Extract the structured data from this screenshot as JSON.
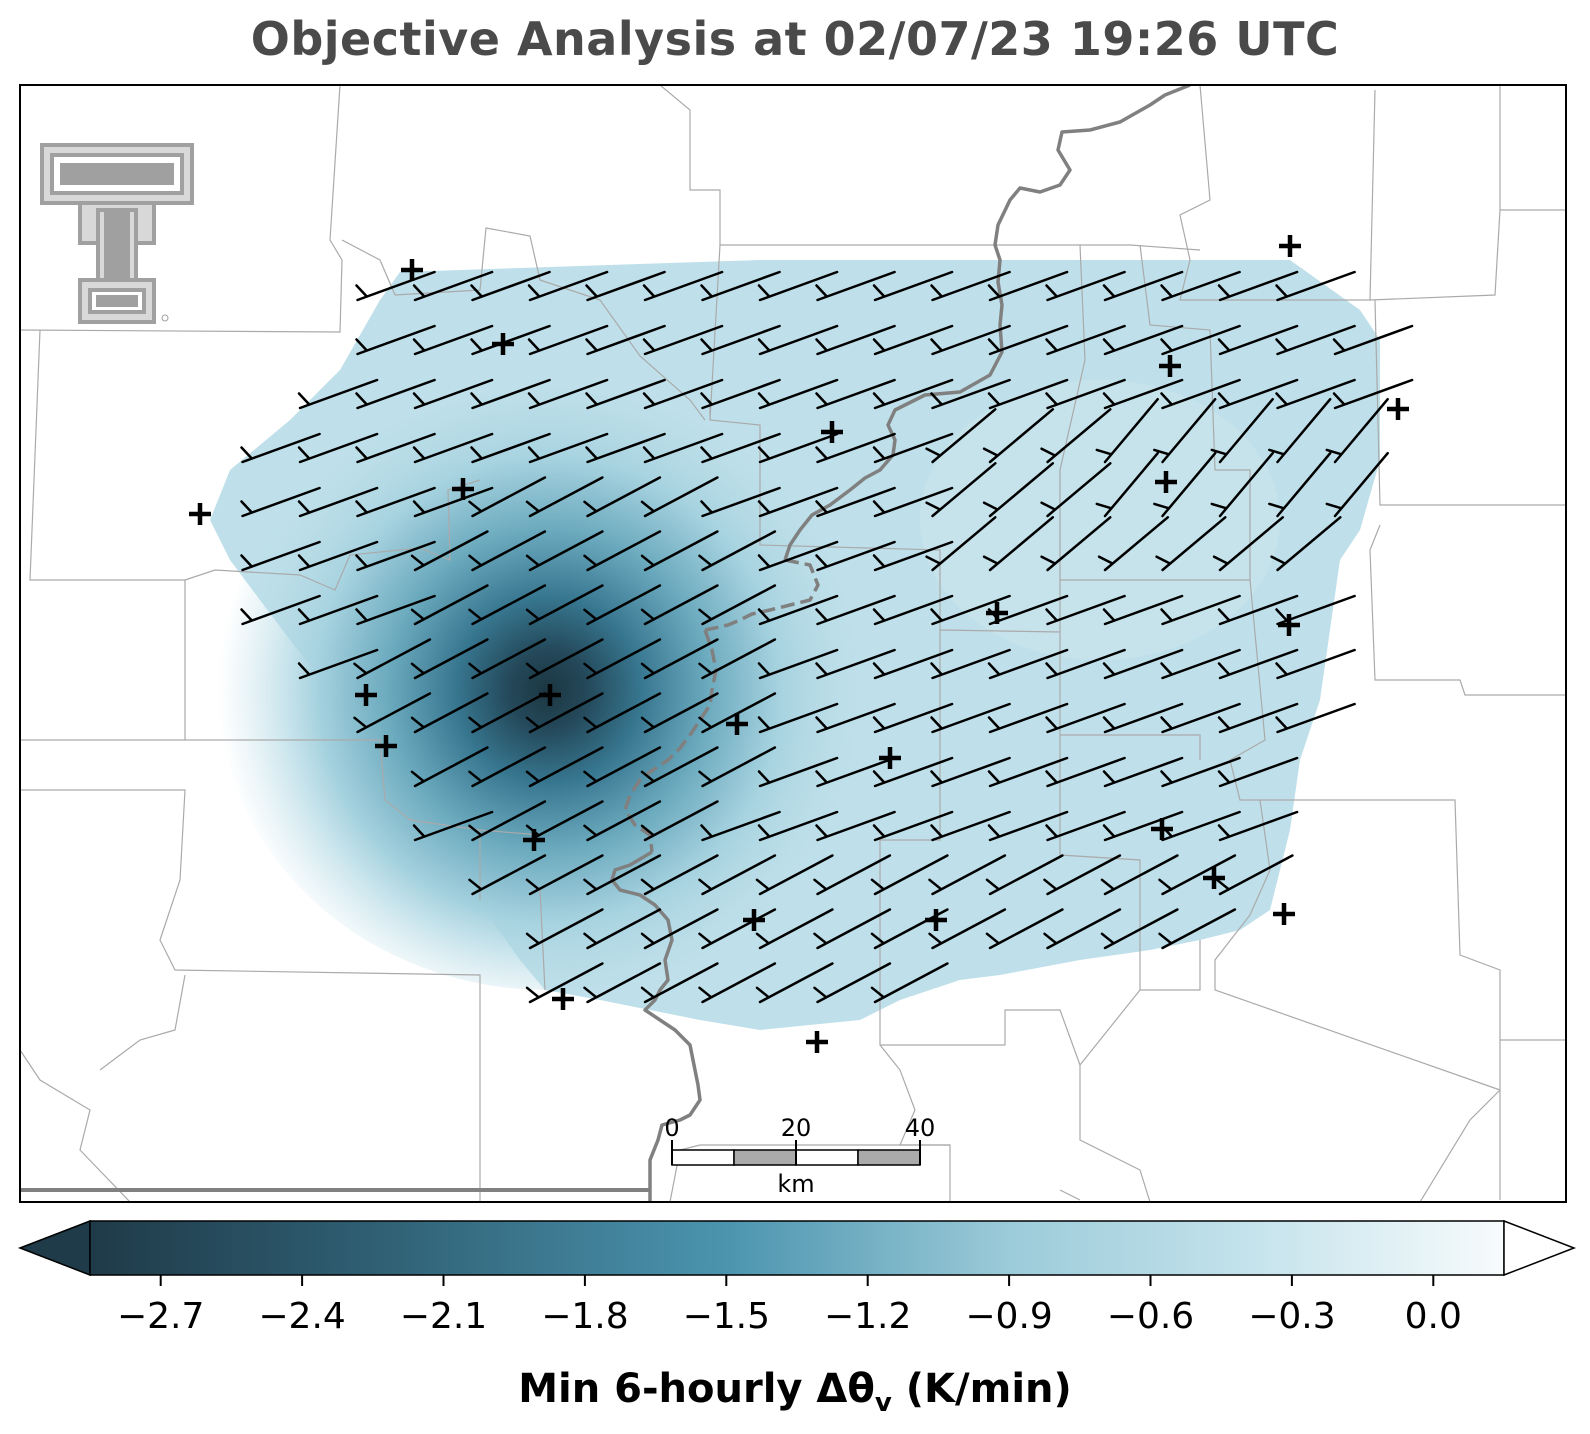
{
  "title": "Objective Analysis at 02/07/23 19:26 UTC",
  "colorbar": {
    "label_main": "Min 6-hourly Δθ",
    "label_sub": "v",
    "label_unit": " (K/min)",
    "ticks": [
      "−2.7",
      "−2.4",
      "−2.1",
      "−1.8",
      "−1.5",
      "−1.2",
      "−0.9",
      "−0.6",
      "−0.3",
      "0.0"
    ],
    "tick_values": [
      -2.7,
      -2.4,
      -2.1,
      -1.8,
      -1.5,
      -1.2,
      -0.9,
      -0.6,
      -0.3,
      0.0
    ],
    "range": [
      -2.85,
      0.15
    ],
    "extend": "both",
    "colors": {
      "dark": "#1f3a48",
      "mid": "#3b8aa5",
      "light": "#bfe0ea",
      "white": "#f9fcfd"
    }
  },
  "scalebar": {
    "labels": [
      "0",
      "20",
      "40"
    ],
    "unit": "km",
    "colors": [
      "#ffffff",
      "#aaaaaa"
    ]
  },
  "logo": {
    "name": "Texas Tech double-T logo",
    "color": "#a0a0a0"
  },
  "colors": {
    "field": "#bfe0ea",
    "field_dark": "#1c3642",
    "barb": "#000000",
    "boundary": "#808080",
    "county": "#aaaaaa"
  }
}
